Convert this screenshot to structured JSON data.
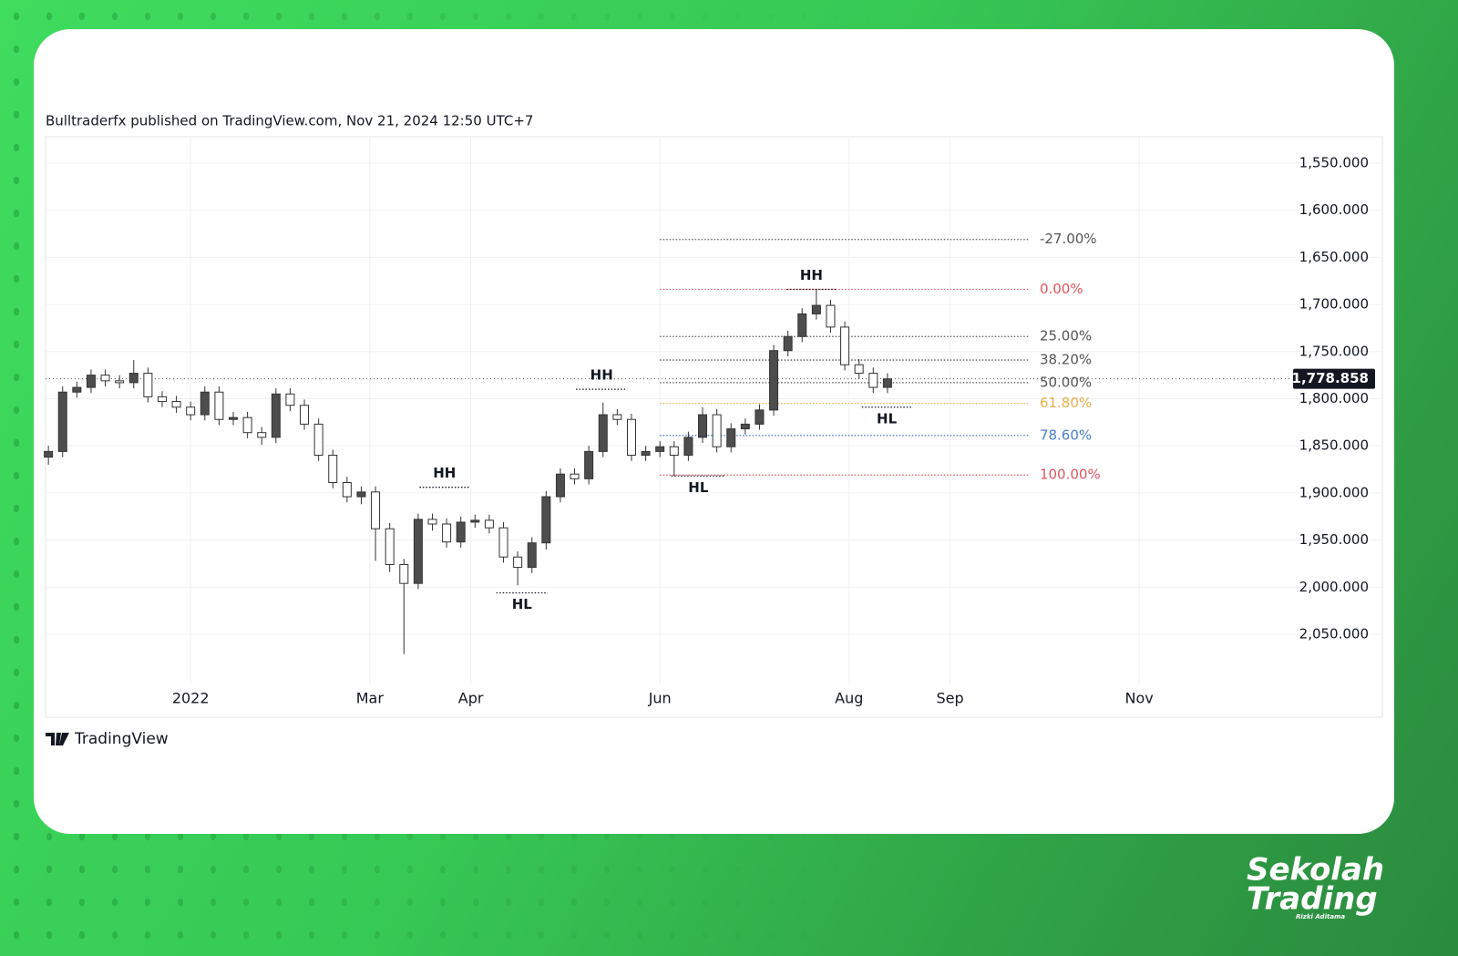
{
  "header": {
    "attribution": "Bulltraderfx published on TradingView.com, Nov 21, 2024 12:50 UTC+7"
  },
  "footer": {
    "logo": "TradingView"
  },
  "brand": {
    "line1": "Sekolah",
    "line2": "Trading",
    "tagline": "Rizki Aditama"
  },
  "chart_data": {
    "type": "candlestick",
    "y_inverted": true,
    "grid": true,
    "up_color": "#ffffff",
    "down_color": "#4d4d4d",
    "outline_color": "#333333",
    "x": [
      0,
      1,
      2,
      3,
      4,
      5,
      6,
      7,
      8,
      9,
      10,
      11,
      12,
      13,
      14,
      15,
      16,
      17,
      18,
      19,
      20,
      21,
      22,
      23,
      24,
      25,
      26,
      27,
      28,
      29,
      30,
      31,
      32,
      33,
      34,
      35,
      36,
      37,
      38,
      39,
      40,
      41,
      42,
      43,
      44,
      45,
      46,
      47,
      48,
      49,
      50,
      51,
      52,
      53,
      54,
      55,
      56,
      57,
      58,
      59
    ],
    "open": [
      1862,
      1856,
      1793,
      1788,
      1775,
      1781,
      1783,
      1773,
      1798,
      1803,
      1809,
      1817,
      1793,
      1822,
      1820,
      1836,
      1841,
      1795,
      1807,
      1827,
      1860,
      1889,
      1904,
      1899,
      1938,
      1976,
      1996,
      1928,
      1933,
      1952,
      1931,
      1929,
      1937,
      1968,
      1979,
      1953,
      1904,
      1880,
      1885,
      1856,
      1817,
      1822,
      1860,
      1856,
      1851,
      1860,
      1841,
      1817,
      1851,
      1832,
      1827,
      1812,
      1749,
      1734,
      1710,
      1701,
      1724,
      1764,
      1773,
      1788
    ],
    "high": [
      1870,
      1862,
      1799,
      1794,
      1787,
      1789,
      1789,
      1804,
      1809,
      1815,
      1823,
      1823,
      1828,
      1828,
      1842,
      1849,
      1847,
      1813,
      1833,
      1866,
      1895,
      1910,
      1912,
      1972,
      1984,
      2071,
      2002,
      1940,
      1958,
      1958,
      1937,
      1943,
      1974,
      1998,
      1985,
      1960,
      1910,
      1891,
      1891,
      1862,
      1828,
      1866,
      1866,
      1862,
      1882,
      1866,
      1847,
      1857,
      1857,
      1838,
      1833,
      1818,
      1755,
      1740,
      1716,
      1730,
      1770,
      1779,
      1794,
      1794
    ],
    "low": [
      1850,
      1787,
      1782,
      1769,
      1769,
      1775,
      1759,
      1767,
      1792,
      1797,
      1803,
      1787,
      1787,
      1814,
      1814,
      1830,
      1789,
      1789,
      1801,
      1821,
      1854,
      1883,
      1893,
      1893,
      1932,
      1970,
      1922,
      1922,
      1927,
      1925,
      1923,
      1923,
      1931,
      1962,
      1947,
      1898,
      1874,
      1874,
      1850,
      1804,
      1811,
      1816,
      1850,
      1845,
      1845,
      1835,
      1809,
      1811,
      1826,
      1821,
      1806,
      1743,
      1728,
      1704,
      1684,
      1695,
      1718,
      1758,
      1767,
      1773
    ],
    "close": [
      1856,
      1793,
      1788,
      1775,
      1781,
      1783,
      1773,
      1798,
      1803,
      1809,
      1817,
      1793,
      1822,
      1820,
      1836,
      1841,
      1795,
      1807,
      1827,
      1860,
      1889,
      1904,
      1899,
      1938,
      1976,
      1996,
      1928,
      1933,
      1952,
      1931,
      1929,
      1937,
      1968,
      1979,
      1953,
      1904,
      1880,
      1885,
      1856,
      1817,
      1822,
      1860,
      1856,
      1851,
      1860,
      1841,
      1817,
      1851,
      1832,
      1827,
      1812,
      1749,
      1734,
      1710,
      1701,
      1724,
      1764,
      1773,
      1788,
      1779
    ],
    "xlim": [
      -0.2,
      93.8
    ],
    "xticks": [
      {
        "value": 10,
        "label": "2022"
      },
      {
        "value": 22.6,
        "label": "Mar"
      },
      {
        "value": 29.7,
        "label": "Apr"
      },
      {
        "value": 43,
        "label": "Jun"
      },
      {
        "value": 56.3,
        "label": "Aug"
      },
      {
        "value": 63.4,
        "label": "Sep"
      },
      {
        "value": 76.7,
        "label": "Nov"
      }
    ],
    "ylim": [
      1522,
      2138
    ],
    "yticks": [
      {
        "value": 1550,
        "label": "1,550.000"
      },
      {
        "value": 1600,
        "label": "1,600.000"
      },
      {
        "value": 1650,
        "label": "1,650.000"
      },
      {
        "value": 1700,
        "label": "1,700.000"
      },
      {
        "value": 1750,
        "label": "1,750.000"
      },
      {
        "value": 1800,
        "label": "1,800.000"
      },
      {
        "value": 1850,
        "label": "1,850.000"
      },
      {
        "value": 1900,
        "label": "1,900.000"
      },
      {
        "value": 1950,
        "label": "1,950.000"
      },
      {
        "value": 2000,
        "label": "2,000.000"
      },
      {
        "value": 2050,
        "label": "2,050.000"
      }
    ],
    "last_price": {
      "value": 1778.858,
      "label": "1,778.858"
    },
    "fib_levels": {
      "x_range": [
        43,
        69
      ],
      "levels": [
        {
          "label": "-27.00%",
          "price": 1631,
          "color": "#555555"
        },
        {
          "label": "0.00%",
          "price": 1684,
          "color": "#e05561"
        },
        {
          "label": "25.00%",
          "price": 1734,
          "color": "#555555"
        },
        {
          "label": "38.20%",
          "price": 1759,
          "color": "#555555"
        },
        {
          "label": "50.00%",
          "price": 1783,
          "color": "#555555"
        },
        {
          "label": "61.80%",
          "price": 1805,
          "color": "#e8b04a"
        },
        {
          "label": "78.60%",
          "price": 1839,
          "color": "#4a7fd0"
        },
        {
          "label": "100.00%",
          "price": 1881,
          "color": "#e05561"
        }
      ]
    },
    "pivots": [
      {
        "label": "HH",
        "price": 1894,
        "x_range": [
          26.1,
          29.6
        ],
        "position": "above"
      },
      {
        "label": "HL",
        "price": 2006,
        "x_range": [
          31.5,
          35.1
        ],
        "position": "below"
      },
      {
        "label": "HH",
        "price": 1790,
        "x_range": [
          37.1,
          40.7
        ],
        "position": "above"
      },
      {
        "label": "HL",
        "price": 1882,
        "x_range": [
          43.8,
          47.6
        ],
        "position": "below"
      },
      {
        "label": "HH",
        "price": 1684,
        "x_range": [
          51.9,
          55.4
        ],
        "position": "above"
      },
      {
        "label": "HL",
        "price": 1809,
        "x_range": [
          57.2,
          60.7
        ],
        "position": "below"
      }
    ]
  }
}
